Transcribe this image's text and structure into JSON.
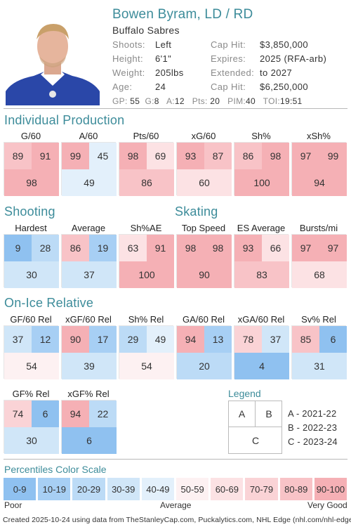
{
  "player": {
    "name": "Bowen Byram, LD / RD",
    "team": "Buffalo Sabres",
    "info_left": [
      {
        "label": "Shoots:",
        "value": "Left"
      },
      {
        "label": "Height:",
        "value": "6'1\""
      },
      {
        "label": "Weight:",
        "value": "205lbs"
      },
      {
        "label": "Age:",
        "value": "24"
      }
    ],
    "info_right": [
      {
        "label": "Cap Hit:",
        "value": "$3,850,000"
      },
      {
        "label": "Expires:",
        "value": "2025 (RFA-arb)"
      },
      {
        "label": "Extended:",
        "value": "to 2027"
      },
      {
        "label": "Cap Hit:",
        "value": "$6,250,000"
      }
    ],
    "statline": [
      {
        "label": "GP:",
        "value": "55"
      },
      {
        "label": "G:",
        "value": "8"
      },
      {
        "label": "A:",
        "value": "12"
      },
      {
        "label": "Pts:",
        "value": "20"
      },
      {
        "label": "PIM:",
        "value": "40"
      },
      {
        "label": "TOI:",
        "value": "19:51"
      }
    ]
  },
  "sections": {
    "individual": "Individual Production",
    "shooting": "Shooting",
    "skating": "Skating",
    "onice": "On-Ice Relative"
  },
  "cards": [
    {
      "id": "g60",
      "title": "G/60",
      "a": 89,
      "b": 91,
      "c": 98
    },
    {
      "id": "a60",
      "title": "A/60",
      "a": 99,
      "b": 45,
      "c": 49
    },
    {
      "id": "pts60",
      "title": "Pts/60",
      "a": 98,
      "b": 69,
      "c": 86
    },
    {
      "id": "xg60",
      "title": "xG/60",
      "a": 93,
      "b": 87,
      "c": 60
    },
    {
      "id": "shpct",
      "title": "Sh%",
      "a": 86,
      "b": 98,
      "c": 100
    },
    {
      "id": "xshpct",
      "title": "xSh%",
      "a": 97,
      "b": 99,
      "c": 94
    },
    {
      "id": "hardest",
      "title": "Hardest",
      "a": 9,
      "b": 28,
      "c": 30
    },
    {
      "id": "average",
      "title": "Average",
      "a": 86,
      "b": 19,
      "c": 37
    },
    {
      "id": "shae",
      "title": "Sh%AE",
      "a": 63,
      "b": 91,
      "c": 100
    },
    {
      "id": "topspeed",
      "title": "Top Speed",
      "a": 98,
      "b": 98,
      "c": 90
    },
    {
      "id": "esavg",
      "title": "ES Average",
      "a": 93,
      "b": 66,
      "c": 83
    },
    {
      "id": "bursts",
      "title": "Bursts/mi",
      "a": 97,
      "b": 97,
      "c": 68
    },
    {
      "id": "gf60rel",
      "title": "GF/60 Rel",
      "a": 37,
      "b": 12,
      "c": 54
    },
    {
      "id": "xgf60rel",
      "title": "xGF/60 Rel",
      "a": 90,
      "b": 17,
      "c": 39
    },
    {
      "id": "shrel",
      "title": "Sh% Rel",
      "a": 29,
      "b": 49,
      "c": 54
    },
    {
      "id": "ga60rel",
      "title": "GA/60 Rel",
      "a": 94,
      "b": 13,
      "c": 20
    },
    {
      "id": "xga60rel",
      "title": "xGA/60 Rel",
      "a": 78,
      "b": 37,
      "c": 4
    },
    {
      "id": "svrel",
      "title": "Sv% Rel",
      "a": 85,
      "b": 6,
      "c": 31
    },
    {
      "id": "gfpctrel",
      "title": "GF% Rel",
      "a": 74,
      "b": 6,
      "c": 30
    },
    {
      "id": "xgfpctrel",
      "title": "xGF% Rel",
      "a": 94,
      "b": 22,
      "c": 6
    }
  ],
  "legend": {
    "title": "Legend",
    "cells": {
      "a": "A",
      "b": "B",
      "c": "C"
    },
    "entries": [
      "A - 2021-22",
      "B - 2022-23",
      "C - 2023-24"
    ]
  },
  "scale": {
    "title": "Percentiles Color Scale",
    "bins": [
      "0-9",
      "10-19",
      "20-29",
      "30-39",
      "40-49",
      "50-59",
      "60-69",
      "70-79",
      "80-89",
      "90-100"
    ],
    "colors": [
      "#8fc1f0",
      "#a7cff4",
      "#bcdbf6",
      "#d0e6f8",
      "#e3f0fb",
      "#fdf1f2",
      "#fce2e4",
      "#fad3d6",
      "#f8c3c7",
      "#f5b0b5"
    ],
    "low": "Poor",
    "mid": "Average",
    "high": "Very Good"
  },
  "footer": "Created 2025-10-24 using data from TheStanleyCap.com, Puckalytics.com, NHL Edge (nhl.com/nhl-edge)."
}
